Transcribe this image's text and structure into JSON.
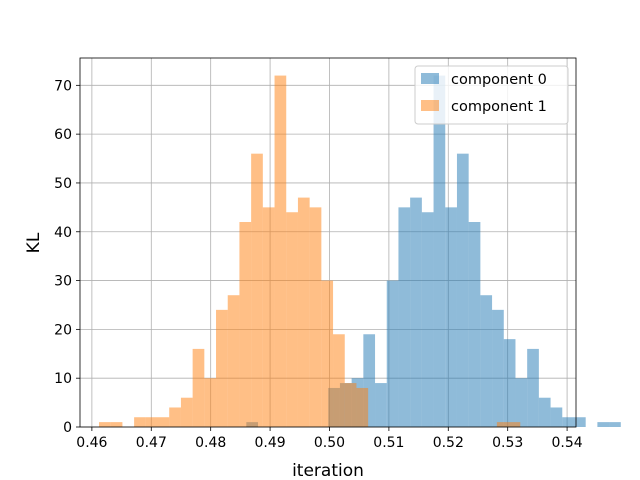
{
  "chart_data": {
    "type": "histogram",
    "title": "",
    "xlabel": "iteration",
    "ylabel": "KL",
    "xlim": [
      0.458,
      0.5415
    ],
    "ylim": [
      0,
      75.6
    ],
    "grid": true,
    "legend_position": "top-right",
    "xticks": [
      "0.46",
      "0.47",
      "0.48",
      "0.49",
      "0.50",
      "0.51",
      "0.52",
      "0.53",
      "0.54"
    ],
    "yticks": [
      "0",
      "10",
      "20",
      "30",
      "40",
      "50",
      "60",
      "70"
    ],
    "series": [
      {
        "name": "component 0",
        "color": "#1f77b4",
        "opacity": 0.5,
        "bin_start": 0.486,
        "bin_width": 0.00197,
        "counts": [
          1,
          0,
          0,
          0,
          0,
          0,
          0,
          8,
          9,
          10,
          19,
          9,
          30,
          45,
          47,
          44,
          72,
          45,
          56,
          42,
          27,
          24,
          18,
          10,
          16,
          6,
          4,
          2,
          2,
          0,
          1,
          1
        ]
      },
      {
        "name": "component 1",
        "color": "#ff7f0e",
        "opacity": 0.5,
        "bin_start": 0.4612,
        "bin_width": 0.00197,
        "counts": [
          1,
          1,
          0,
          2,
          2,
          2,
          4,
          6,
          16,
          10,
          24,
          27,
          42,
          56,
          45,
          72,
          44,
          47,
          45,
          30,
          19,
          9,
          8,
          0,
          0,
          0,
          0,
          0,
          0,
          0,
          0,
          0,
          0,
          0,
          1,
          1
        ]
      }
    ]
  }
}
